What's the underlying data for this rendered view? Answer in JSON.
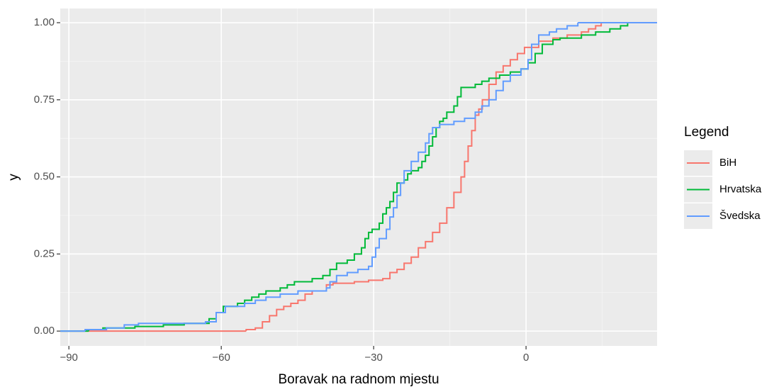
{
  "chart_data": {
    "type": "step",
    "x_label": "Boravak na radnom mjestu",
    "y_label": "y",
    "legend_title": "Legend",
    "legend_position": "right",
    "grid": true,
    "xlim": [
      -91.7,
      25.8
    ],
    "ylim": [
      -0.048,
      1.046
    ],
    "xticks": [
      {
        "value": -90,
        "label": "−90"
      },
      {
        "value": -60,
        "label": "−60"
      },
      {
        "value": -30,
        "label": "−30"
      },
      0
    ],
    "yticks": [
      {
        "value": 0,
        "label": "0.00"
      },
      {
        "value": 0.25,
        "label": "0.25"
      },
      {
        "value": 0.5,
        "label": "0.50"
      },
      {
        "value": 0.75,
        "label": "0.75"
      },
      {
        "value": 1,
        "label": "1.00"
      }
    ],
    "series": [
      {
        "name": "BiH",
        "color": "#F8766D",
        "x": [
          -55.1,
          -53.3,
          -51.9,
          -50.5,
          -49.1,
          -47.7,
          -46.3,
          -44.9,
          -43.5,
          -42.1,
          -39.3,
          -38.0,
          -33.8,
          -31.0,
          -28.2,
          -26.8,
          -25.4,
          -24.0,
          -22.6,
          -21.2,
          -19.8,
          -18.4,
          -17.0,
          -15.6,
          -14.2,
          -12.8,
          -12.1,
          -11.4,
          -10.7,
          -10.0,
          -9.3,
          -8.6,
          -7.3,
          -5.9,
          -4.5,
          -3.1,
          -1.7,
          -0.3,
          2.5,
          5.3,
          8.1,
          10.9,
          12.3,
          13.7,
          14.8
        ],
        "values": [
          0.005,
          0.01,
          0.03,
          0.05,
          0.07,
          0.08,
          0.09,
          0.1,
          0.12,
          0.13,
          0.15,
          0.155,
          0.16,
          0.165,
          0.17,
          0.19,
          0.2,
          0.22,
          0.24,
          0.27,
          0.29,
          0.32,
          0.35,
          0.4,
          0.45,
          0.5,
          0.55,
          0.6,
          0.65,
          0.7,
          0.72,
          0.75,
          0.8,
          0.84,
          0.86,
          0.88,
          0.9,
          0.92,
          0.94,
          0.95,
          0.96,
          0.97,
          0.98,
          0.99,
          1.0
        ]
      },
      {
        "name": "Hrvatska",
        "color": "#00BA38",
        "x": [
          -86.1,
          -83.3,
          -77.0,
          -71.4,
          -67.3,
          -62.4,
          -61.0,
          -59.6,
          -56.8,
          -55.4,
          -54.0,
          -52.6,
          -51.2,
          -48.4,
          -47.0,
          -45.6,
          -42.1,
          -40.0,
          -38.6,
          -37.3,
          -35.2,
          -33.8,
          -32.4,
          -31.7,
          -31.0,
          -30.3,
          -28.9,
          -28.2,
          -27.5,
          -26.8,
          -26.1,
          -25.4,
          -24.0,
          -23.3,
          -22.6,
          -21.2,
          -20.5,
          -19.8,
          -19.1,
          -18.4,
          -17.7,
          -17.0,
          -16.3,
          -15.6,
          -14.2,
          -13.5,
          -12.8,
          -10.0,
          -8.7,
          -7.3,
          -5.2,
          -3.1,
          -1.0,
          0.4,
          1.8,
          3.2,
          5.3,
          6.7,
          10.9,
          13.7,
          16.5,
          18.6,
          20.0
        ],
        "values": [
          0.005,
          0.01,
          0.015,
          0.02,
          0.025,
          0.04,
          0.06,
          0.08,
          0.09,
          0.1,
          0.11,
          0.12,
          0.13,
          0.14,
          0.15,
          0.16,
          0.17,
          0.18,
          0.2,
          0.22,
          0.23,
          0.25,
          0.27,
          0.3,
          0.32,
          0.33,
          0.35,
          0.38,
          0.4,
          0.42,
          0.45,
          0.48,
          0.49,
          0.51,
          0.52,
          0.53,
          0.55,
          0.57,
          0.6,
          0.63,
          0.66,
          0.68,
          0.69,
          0.71,
          0.73,
          0.76,
          0.79,
          0.8,
          0.81,
          0.82,
          0.83,
          0.84,
          0.85,
          0.87,
          0.9,
          0.93,
          0.945,
          0.95,
          0.96,
          0.97,
          0.98,
          0.99,
          1.0
        ]
      },
      {
        "name": "Švedska",
        "color": "#619CFF",
        "x": [
          -86.8,
          -82.6,
          -79.1,
          -76.3,
          -63.1,
          -61.0,
          -59.2,
          -55.4,
          -53.3,
          -51.2,
          -48.4,
          -44.9,
          -39.3,
          -38.6,
          -37.3,
          -35.2,
          -33.1,
          -31.0,
          -30.3,
          -29.6,
          -28.9,
          -27.5,
          -26.8,
          -26.1,
          -25.4,
          -24.7,
          -24.0,
          -22.6,
          -21.2,
          -19.8,
          -19.1,
          -18.4,
          -17.0,
          -14.2,
          -12.1,
          -10.0,
          -8.7,
          -7.3,
          -5.9,
          -4.5,
          -3.1,
          -1.0,
          0.4,
          1.1,
          2.5,
          4.6,
          6.0,
          8.1,
          10.2
        ],
        "values": [
          0.005,
          0.01,
          0.02,
          0.025,
          0.03,
          0.06,
          0.08,
          0.09,
          0.1,
          0.11,
          0.12,
          0.13,
          0.14,
          0.16,
          0.18,
          0.19,
          0.2,
          0.21,
          0.24,
          0.27,
          0.3,
          0.33,
          0.37,
          0.4,
          0.44,
          0.48,
          0.52,
          0.55,
          0.58,
          0.61,
          0.64,
          0.66,
          0.67,
          0.68,
          0.69,
          0.71,
          0.73,
          0.75,
          0.78,
          0.81,
          0.83,
          0.85,
          0.88,
          0.93,
          0.96,
          0.97,
          0.98,
          0.99,
          1.0
        ]
      }
    ]
  }
}
